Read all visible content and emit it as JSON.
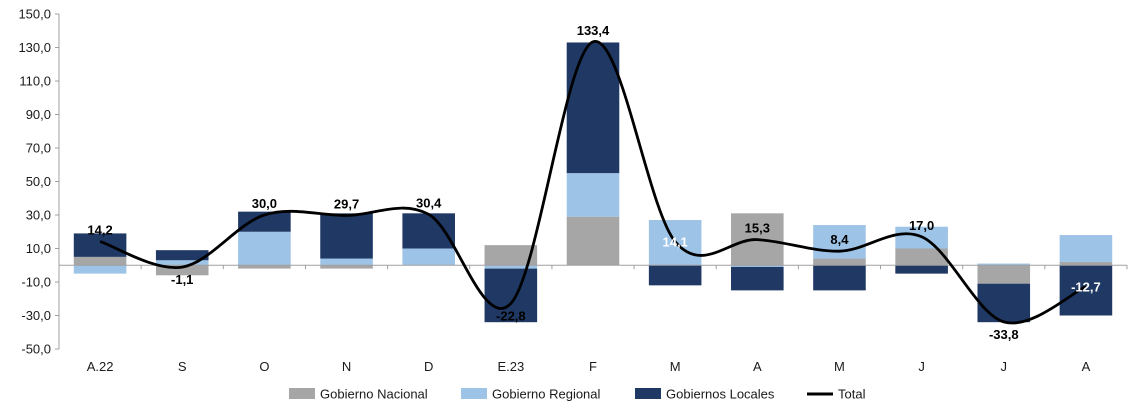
{
  "chart_data": {
    "type": "bar",
    "stacked": true,
    "categories": [
      "A.22",
      "S",
      "O",
      "N",
      "D",
      "E.23",
      "F",
      "M",
      "A",
      "M",
      "J",
      "J",
      "A"
    ],
    "ylim": [
      -50,
      150
    ],
    "yticks": [
      -50,
      -30,
      -10,
      10,
      30,
      50,
      70,
      90,
      110,
      130,
      150
    ],
    "ytick_labels": [
      "-50,0",
      "-30,0",
      "-10,0",
      "10,0",
      "30,0",
      "50,0",
      "70,0",
      "90,0",
      "110,0",
      "130,0",
      "150,0"
    ],
    "grid": false,
    "legend_position": "bottom",
    "series": [
      {
        "name": "Gobierno Nacional",
        "color": "#a6a6a6",
        "values": [
          5,
          -6,
          -2,
          -2,
          0,
          12,
          29,
          0,
          31,
          4,
          10,
          -11,
          2
        ]
      },
      {
        "name": "Gobierno Regional",
        "color": "#9dc3e6",
        "values": [
          -5,
          3,
          20,
          4,
          10,
          -2,
          26,
          27,
          -1,
          20,
          13,
          1,
          16
        ]
      },
      {
        "name": "Gobiernos Locales",
        "color": "#1f3864",
        "values": [
          14,
          6,
          12,
          27,
          21,
          -32,
          78,
          -12,
          -14,
          -15,
          -5,
          -23,
          -30
        ]
      }
    ],
    "line": {
      "name": "Total",
      "color": "#000000",
      "values": [
        14.2,
        -1.1,
        30.0,
        29.7,
        30.4,
        -22.8,
        133.4,
        14.1,
        15.3,
        8.4,
        17.0,
        -33.8,
        -12.7
      ]
    },
    "data_labels": [
      {
        "text": "14,2",
        "pos": "above",
        "color": "#000000"
      },
      {
        "text": "-1,1",
        "pos": "below",
        "color": "#000000"
      },
      {
        "text": "30,0",
        "pos": "above",
        "color": "#000000"
      },
      {
        "text": "29,7",
        "pos": "above",
        "color": "#000000"
      },
      {
        "text": "30,4",
        "pos": "above",
        "color": "#000000"
      },
      {
        "text": "-22,8",
        "pos": "below",
        "color": "#000000"
      },
      {
        "text": "133,4",
        "pos": "above",
        "color": "#000000"
      },
      {
        "text": "14,1",
        "pos": "inside",
        "color": "#ffffff"
      },
      {
        "text": "15,3",
        "pos": "above",
        "color": "#000000"
      },
      {
        "text": "8,4",
        "pos": "above",
        "color": "#000000"
      },
      {
        "text": "17,0",
        "pos": "above",
        "color": "#000000"
      },
      {
        "text": "-33,8",
        "pos": "below",
        "color": "#000000"
      },
      {
        "text": "-12,7",
        "pos": "inside",
        "color": "#ffffff"
      }
    ]
  }
}
